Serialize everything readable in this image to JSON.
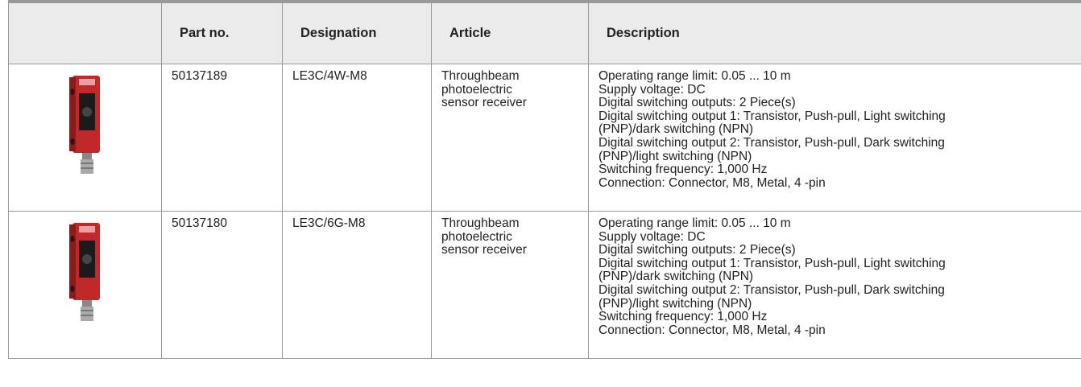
{
  "table": {
    "headers": [
      "Part no.",
      "Designation",
      "Article",
      "Description"
    ],
    "rows": [
      {
        "part_no": "50137189",
        "designation": "LE3C/4W-M8",
        "article": [
          "Throughbeam",
          "photoelectric",
          "sensor receiver"
        ],
        "description": [
          "Operating range limit: 0.05 ... 10 m",
          "Supply voltage: DC",
          "Digital switching outputs: 2 Piece(s)",
          "Digital switching output 1: Transistor, Push-pull, Light switching",
          "(PNP)/dark switching (NPN)",
          "Digital switching output 2: Transistor, Push-pull, Dark switching",
          "(PNP)/light switching (NPN)",
          "Switching frequency: 1,000 Hz",
          "Connection: Connector, M8, Metal, 4 -pin"
        ]
      },
      {
        "part_no": "50137180",
        "designation": "LE3C/6G-M8",
        "article": [
          "Throughbeam",
          "photoelectric",
          "sensor receiver"
        ],
        "description": [
          "Operating range limit: 0.05 ... 10 m",
          "Supply voltage: DC",
          "Digital switching outputs: 2 Piece(s)",
          "Digital switching output 1: Transistor, Push-pull, Light switching",
          "(PNP)/dark switching (NPN)",
          "Digital switching output 2: Transistor, Push-pull, Dark switching",
          "(PNP)/light switching (NPN)",
          "Switching frequency: 1,000 Hz",
          "Connection: Connector, M8, Metal, 4 -pin"
        ]
      }
    ]
  }
}
